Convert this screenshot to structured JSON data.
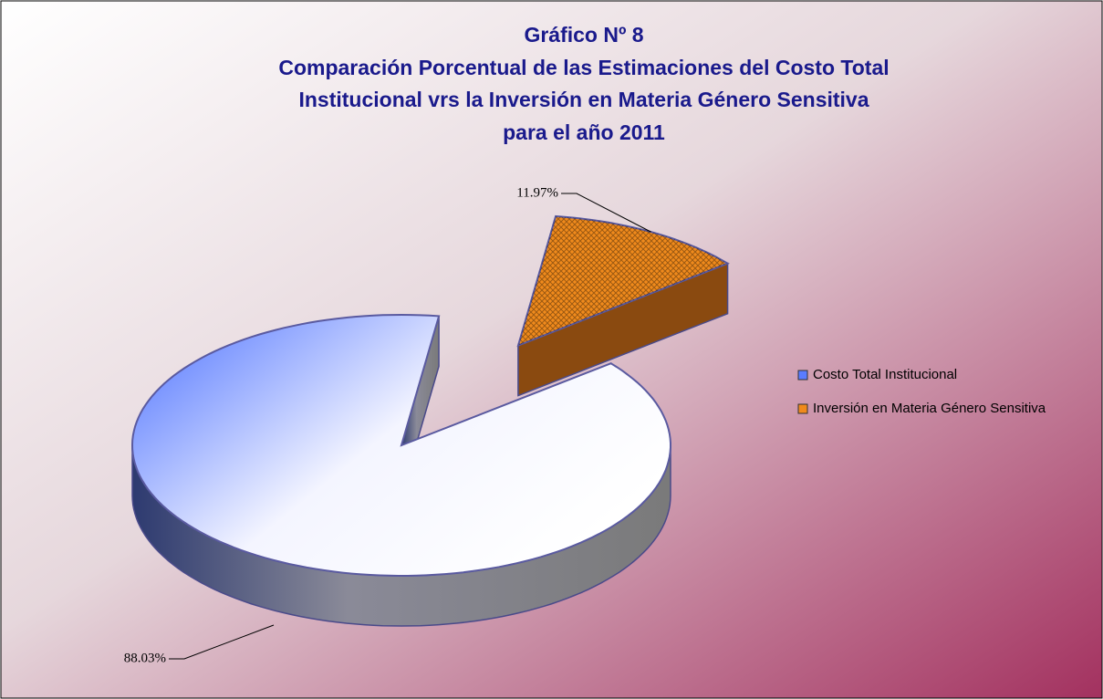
{
  "chart_data": {
    "type": "pie",
    "title": [
      "Gráfico Nº 8",
      "Comparación Porcentual de las Estimaciones del Costo Total",
      "Institucional vrs la Inversión en Materia Género Sensitiva",
      "para el año 2011"
    ],
    "categories": [
      "Costo Total Institucional",
      "Inversión en Materia Género Sensitiva"
    ],
    "values": [
      88.03,
      11.97
    ],
    "value_labels": [
      "88.03%",
      "11.97%"
    ],
    "colors": [
      "#5a7cff",
      "#f08a1c"
    ],
    "explode": [
      false,
      true
    ],
    "legend": "right"
  }
}
